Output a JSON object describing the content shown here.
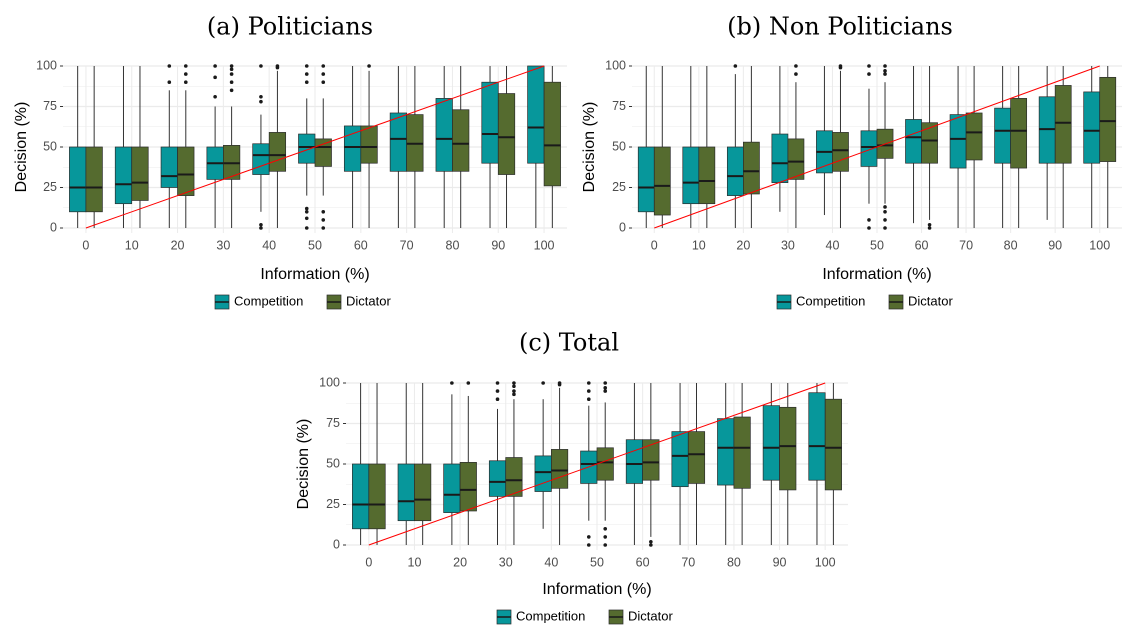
{
  "colors": {
    "competition": "#07979b",
    "dictator": "#556b2f",
    "reference_line": "#ff0000",
    "grid": "#ebebeb",
    "whisker": "#333333"
  },
  "legend": {
    "entries": [
      "Competition",
      "Dictator"
    ],
    "position": "bottom"
  },
  "chart_data": [
    {
      "type": "box",
      "title": "(a) Politicians",
      "xlabel": "Information (%)",
      "ylabel": "Decision (%)",
      "categories": [
        "0",
        "10",
        "20",
        "30",
        "40",
        "50",
        "60",
        "70",
        "80",
        "90",
        "100"
      ],
      "yticks": [
        0,
        25,
        50,
        75,
        100
      ],
      "ylim": [
        0,
        100
      ],
      "grid": true,
      "reference_line": {
        "from": [
          0,
          0
        ],
        "to": [
          100,
          100
        ]
      },
      "series": [
        {
          "name": "Competition",
          "boxes": [
            {
              "min": 0,
              "q1": 10,
              "median": 25,
              "q3": 50,
              "max": 100,
              "outliers": []
            },
            {
              "min": 0,
              "q1": 15,
              "median": 27,
              "q3": 50,
              "max": 100,
              "outliers": []
            },
            {
              "min": 0,
              "q1": 25,
              "median": 32,
              "q3": 50,
              "max": 85,
              "outliers": [
                90,
                100
              ]
            },
            {
              "min": 0,
              "q1": 30,
              "median": 40,
              "q3": 50,
              "max": 75,
              "outliers": [
                81,
                93,
                100
              ]
            },
            {
              "min": 10,
              "q1": 33,
              "median": 45,
              "q3": 52,
              "max": 70,
              "outliers": [
                0,
                2,
                78,
                81,
                100
              ]
            },
            {
              "min": 20,
              "q1": 40,
              "median": 50,
              "q3": 58,
              "max": 80,
              "outliers": [
                0,
                6,
                10,
                12,
                90,
                95,
                100
              ]
            },
            {
              "min": 0,
              "q1": 35,
              "median": 50,
              "q3": 63,
              "max": 100,
              "outliers": []
            },
            {
              "min": 0,
              "q1": 35,
              "median": 55,
              "q3": 71,
              "max": 100,
              "outliers": []
            },
            {
              "min": 0,
              "q1": 35,
              "median": 55,
              "q3": 80,
              "max": 100,
              "outliers": []
            },
            {
              "min": 0,
              "q1": 40,
              "median": 58,
              "q3": 90,
              "max": 100,
              "outliers": []
            },
            {
              "min": 0,
              "q1": 40,
              "median": 62,
              "q3": 100,
              "max": 100,
              "outliers": []
            }
          ]
        },
        {
          "name": "Dictator",
          "boxes": [
            {
              "min": 0,
              "q1": 10,
              "median": 25,
              "q3": 50,
              "max": 100,
              "outliers": []
            },
            {
              "min": 0,
              "q1": 17,
              "median": 28,
              "q3": 50,
              "max": 100,
              "outliers": []
            },
            {
              "min": 0,
              "q1": 20,
              "median": 33,
              "q3": 50,
              "max": 85,
              "outliers": [
                90,
                95,
                100
              ]
            },
            {
              "min": 0,
              "q1": 30,
              "median": 40,
              "q3": 51,
              "max": 75,
              "outliers": [
                85,
                90,
                95,
                98,
                100
              ]
            },
            {
              "min": 0,
              "q1": 35,
              "median": 45,
              "q3": 59,
              "max": 97,
              "outliers": [
                99,
                100
              ]
            },
            {
              "min": 20,
              "q1": 38,
              "median": 50,
              "q3": 55,
              "max": 80,
              "outliers": [
                0,
                5,
                10,
                90,
                95,
                100
              ]
            },
            {
              "min": 0,
              "q1": 40,
              "median": 50,
              "q3": 63,
              "max": 97,
              "outliers": [
                100
              ]
            },
            {
              "min": 0,
              "q1": 35,
              "median": 52,
              "q3": 70,
              "max": 100,
              "outliers": []
            },
            {
              "min": 0,
              "q1": 35,
              "median": 52,
              "q3": 73,
              "max": 100,
              "outliers": []
            },
            {
              "min": 0,
              "q1": 33,
              "median": 56,
              "q3": 83,
              "max": 100,
              "outliers": []
            },
            {
              "min": 0,
              "q1": 26,
              "median": 51,
              "q3": 90,
              "max": 100,
              "outliers": []
            }
          ]
        }
      ]
    },
    {
      "type": "box",
      "title": "(b) Non Politicians",
      "xlabel": "Information (%)",
      "ylabel": "Decision (%)",
      "categories": [
        "0",
        "10",
        "20",
        "30",
        "40",
        "50",
        "60",
        "70",
        "80",
        "90",
        "100"
      ],
      "yticks": [
        0,
        25,
        50,
        75,
        100
      ],
      "ylim": [
        0,
        100
      ],
      "grid": true,
      "reference_line": {
        "from": [
          0,
          0
        ],
        "to": [
          100,
          100
        ]
      },
      "series": [
        {
          "name": "Competition",
          "boxes": [
            {
              "min": 0,
              "q1": 10,
              "median": 25,
              "q3": 50,
              "max": 100,
              "outliers": []
            },
            {
              "min": 0,
              "q1": 15,
              "median": 28,
              "q3": 50,
              "max": 100,
              "outliers": []
            },
            {
              "min": 0,
              "q1": 20,
              "median": 32,
              "q3": 50,
              "max": 95,
              "outliers": [
                100
              ]
            },
            {
              "min": 10,
              "q1": 28,
              "median": 40,
              "q3": 58,
              "max": 100,
              "outliers": []
            },
            {
              "min": 8,
              "q1": 34,
              "median": 47,
              "q3": 60,
              "max": 100,
              "outliers": []
            },
            {
              "min": 15,
              "q1": 38,
              "median": 50,
              "q3": 60,
              "max": 86,
              "outliers": [
                0,
                5,
                95,
                100
              ]
            },
            {
              "min": 3,
              "q1": 40,
              "median": 56,
              "q3": 67,
              "max": 100,
              "outliers": []
            },
            {
              "min": 0,
              "q1": 37,
              "median": 55,
              "q3": 70,
              "max": 100,
              "outliers": []
            },
            {
              "min": 0,
              "q1": 40,
              "median": 60,
              "q3": 74,
              "max": 100,
              "outliers": []
            },
            {
              "min": 5,
              "q1": 40,
              "median": 61,
              "q3": 81,
              "max": 100,
              "outliers": []
            },
            {
              "min": 0,
              "q1": 40,
              "median": 60,
              "q3": 84,
              "max": 100,
              "outliers": []
            }
          ]
        },
        {
          "name": "Dictator",
          "boxes": [
            {
              "min": 0,
              "q1": 8,
              "median": 26,
              "q3": 50,
              "max": 100,
              "outliers": []
            },
            {
              "min": 0,
              "q1": 15,
              "median": 29,
              "q3": 50,
              "max": 100,
              "outliers": []
            },
            {
              "min": 0,
              "q1": 21,
              "median": 35,
              "q3": 53,
              "max": 100,
              "outliers": []
            },
            {
              "min": 0,
              "q1": 30,
              "median": 41,
              "q3": 55,
              "max": 90,
              "outliers": [
                95,
                100
              ]
            },
            {
              "min": 0,
              "q1": 35,
              "median": 48,
              "q3": 59,
              "max": 97,
              "outliers": [
                99,
                100
              ]
            },
            {
              "min": 15,
              "q1": 43,
              "median": 51,
              "q3": 61,
              "max": 90,
              "outliers": [
                0,
                5,
                10,
                13,
                95,
                97,
                100
              ]
            },
            {
              "min": 5,
              "q1": 40,
              "median": 54,
              "q3": 65,
              "max": 100,
              "outliers": [
                0,
                2
              ]
            },
            {
              "min": 0,
              "q1": 42,
              "median": 59,
              "q3": 71,
              "max": 100,
              "outliers": []
            },
            {
              "min": 0,
              "q1": 37,
              "median": 60,
              "q3": 80,
              "max": 100,
              "outliers": []
            },
            {
              "min": 0,
              "q1": 40,
              "median": 65,
              "q3": 88,
              "max": 100,
              "outliers": []
            },
            {
              "min": 0,
              "q1": 41,
              "median": 66,
              "q3": 93,
              "max": 100,
              "outliers": []
            }
          ]
        }
      ]
    },
    {
      "type": "box",
      "title": "(c) Total",
      "xlabel": "Information (%)",
      "ylabel": "Decision (%)",
      "categories": [
        "0",
        "10",
        "20",
        "30",
        "40",
        "50",
        "60",
        "70",
        "80",
        "90",
        "100"
      ],
      "yticks": [
        0,
        25,
        50,
        75,
        100
      ],
      "ylim": [
        0,
        100
      ],
      "grid": true,
      "reference_line": {
        "from": [
          0,
          0
        ],
        "to": [
          100,
          100
        ]
      },
      "series": [
        {
          "name": "Competition",
          "boxes": [
            {
              "min": 0,
              "q1": 10,
              "median": 25,
              "q3": 50,
              "max": 100,
              "outliers": []
            },
            {
              "min": 0,
              "q1": 15,
              "median": 27,
              "q3": 50,
              "max": 100,
              "outliers": []
            },
            {
              "min": 0,
              "q1": 20,
              "median": 31,
              "q3": 50,
              "max": 93,
              "outliers": [
                100
              ]
            },
            {
              "min": 0,
              "q1": 30,
              "median": 39,
              "q3": 52,
              "max": 84,
              "outliers": [
                90,
                95,
                100
              ]
            },
            {
              "min": 10,
              "q1": 33,
              "median": 45,
              "q3": 55,
              "max": 90,
              "outliers": [
                100
              ]
            },
            {
              "min": 15,
              "q1": 38,
              "median": 50,
              "q3": 58,
              "max": 86,
              "outliers": [
                0,
                5,
                90,
                95,
                100
              ]
            },
            {
              "min": 0,
              "q1": 38,
              "median": 50,
              "q3": 65,
              "max": 100,
              "outliers": []
            },
            {
              "min": 0,
              "q1": 36,
              "median": 55,
              "q3": 70,
              "max": 100,
              "outliers": []
            },
            {
              "min": 0,
              "q1": 37,
              "median": 60,
              "q3": 78,
              "max": 100,
              "outliers": []
            },
            {
              "min": 0,
              "q1": 40,
              "median": 60,
              "q3": 86,
              "max": 100,
              "outliers": []
            },
            {
              "min": 0,
              "q1": 40,
              "median": 61,
              "q3": 94,
              "max": 100,
              "outliers": []
            }
          ]
        },
        {
          "name": "Dictator",
          "boxes": [
            {
              "min": 0,
              "q1": 10,
              "median": 25,
              "q3": 50,
              "max": 100,
              "outliers": []
            },
            {
              "min": 0,
              "q1": 15,
              "median": 28,
              "q3": 50,
              "max": 100,
              "outliers": []
            },
            {
              "min": 0,
              "q1": 21,
              "median": 34,
              "q3": 51,
              "max": 92,
              "outliers": [
                100
              ]
            },
            {
              "min": 0,
              "q1": 30,
              "median": 40,
              "q3": 54,
              "max": 90,
              "outliers": [
                93,
                95,
                98,
                100
              ]
            },
            {
              "min": 0,
              "q1": 35,
              "median": 46,
              "q3": 59,
              "max": 97,
              "outliers": [
                99,
                100
              ]
            },
            {
              "min": 15,
              "q1": 40,
              "median": 51,
              "q3": 60,
              "max": 88,
              "outliers": [
                0,
                5,
                10,
                95,
                97,
                100
              ]
            },
            {
              "min": 5,
              "q1": 40,
              "median": 51,
              "q3": 65,
              "max": 100,
              "outliers": [
                0,
                2
              ]
            },
            {
              "min": 0,
              "q1": 38,
              "median": 56,
              "q3": 70,
              "max": 100,
              "outliers": []
            },
            {
              "min": 0,
              "q1": 35,
              "median": 60,
              "q3": 79,
              "max": 100,
              "outliers": []
            },
            {
              "min": 0,
              "q1": 34,
              "median": 61,
              "q3": 85,
              "max": 100,
              "outliers": []
            },
            {
              "min": 0,
              "q1": 34,
              "median": 60,
              "q3": 90,
              "max": 100,
              "outliers": []
            }
          ]
        }
      ]
    }
  ]
}
